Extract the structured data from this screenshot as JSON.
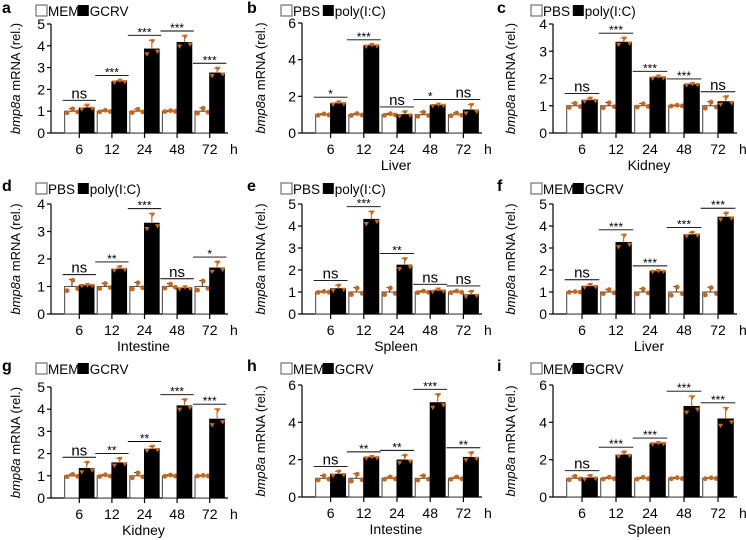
{
  "chart_data": [
    {
      "type": "bar",
      "panel": "a",
      "ylabel_italic": "bmp8a",
      "ylabel_rest": " mRNA (rel.)",
      "xlabel": "",
      "x_unit": "h",
      "categories": [
        "6",
        "12",
        "24",
        "48",
        "72"
      ],
      "ylim": [
        0,
        5
      ],
      "yticks": [
        0,
        1,
        2,
        3,
        4,
        5
      ],
      "legend": [
        "MEM",
        "GCRV"
      ],
      "series": [
        {
          "name": "MEM",
          "values": [
            1.0,
            1.0,
            1.0,
            1.0,
            1.0
          ],
          "errors": [
            0.12,
            0.05,
            0.1,
            0.03,
            0.15
          ]
        },
        {
          "name": "GCRV",
          "values": [
            1.15,
            2.35,
            3.85,
            4.15,
            2.75
          ],
          "errors": [
            0.12,
            0.06,
            0.4,
            0.3,
            0.22
          ]
        }
      ],
      "significance": [
        "ns",
        "***",
        "***",
        "***",
        "***"
      ]
    },
    {
      "type": "bar",
      "panel": "b",
      "ylabel_italic": "bmp8a",
      "ylabel_rest": " mRNA (rel.)",
      "xlabel": "Liver",
      "x_unit": "h",
      "categories": [
        "6",
        "12",
        "24",
        "48",
        "72"
      ],
      "ylim": [
        0,
        6
      ],
      "yticks": [
        0,
        2,
        4,
        6
      ],
      "legend": [
        "PBS",
        "poly(I:C)"
      ],
      "series": [
        {
          "name": "PBS",
          "values": [
            1.0,
            1.0,
            1.0,
            1.0,
            1.0
          ],
          "errors": [
            0.05,
            0.07,
            0.06,
            0.15,
            0.1
          ]
        },
        {
          "name": "poly(I:C)",
          "values": [
            1.6,
            4.75,
            1.0,
            1.5,
            1.25
          ],
          "errors": [
            0.08,
            0.06,
            0.15,
            0.05,
            0.3
          ]
        }
      ],
      "significance": [
        "*",
        "***",
        "ns",
        "*",
        "ns"
      ]
    },
    {
      "type": "bar",
      "panel": "c",
      "ylabel_italic": "bmp8a",
      "ylabel_rest": " mRNA (rel.)",
      "xlabel": "Kidney",
      "x_unit": "h",
      "categories": [
        "6",
        "12",
        "24",
        "48",
        "72"
      ],
      "ylim": [
        0,
        4
      ],
      "yticks": [
        0,
        1,
        2,
        3,
        4
      ],
      "legend": [
        "PBS",
        "poly(I:C)"
      ],
      "series": [
        {
          "name": "PBS",
          "values": [
            1.0,
            1.0,
            1.0,
            1.0,
            1.0
          ],
          "errors": [
            0.1,
            0.12,
            0.08,
            0.02,
            0.15
          ]
        },
        {
          "name": "poly(I:C)",
          "values": [
            1.2,
            3.33,
            2.03,
            1.77,
            1.15
          ],
          "errors": [
            0.07,
            0.15,
            0.05,
            0.03,
            0.18
          ]
        }
      ],
      "significance": [
        "ns",
        "***",
        "***",
        "***",
        "ns"
      ]
    },
    {
      "type": "bar",
      "panel": "d",
      "ylabel_italic": "bmp8a",
      "ylabel_rest": " mRNA (rel.)",
      "xlabel": "Intestine",
      "x_unit": "h",
      "categories": [
        "6",
        "12",
        "24",
        "48",
        "72"
      ],
      "ylim": [
        0,
        4
      ],
      "yticks": [
        0,
        1,
        2,
        3,
        4
      ],
      "legend": [
        "PBS",
        "poly(I:C)"
      ],
      "series": [
        {
          "name": "PBS",
          "values": [
            1.0,
            1.0,
            1.0,
            1.0,
            1.0
          ],
          "errors": [
            0.25,
            0.12,
            0.15,
            0.1,
            0.22
          ]
        },
        {
          "name": "poly(I:C)",
          "values": [
            1.03,
            1.63,
            3.3,
            0.93,
            1.67
          ],
          "errors": [
            0.02,
            0.08,
            0.35,
            0.05,
            0.22
          ]
        }
      ],
      "significance": [
        "ns",
        "**",
        "***",
        "ns",
        "*"
      ]
    },
    {
      "type": "bar",
      "panel": "e",
      "ylabel_italic": "bmp8a",
      "ylabel_rest": " mRNA (rel.)",
      "xlabel": "Spleen",
      "x_unit": "h",
      "categories": [
        "6",
        "12",
        "24",
        "48",
        "72"
      ],
      "ylim": [
        0,
        5
      ],
      "yticks": [
        0,
        1,
        2,
        3,
        4,
        5
      ],
      "legend": [
        "PBS",
        "poly(I:C)"
      ],
      "series": [
        {
          "name": "PBS",
          "values": [
            1.0,
            1.0,
            1.0,
            1.0,
            1.0
          ],
          "errors": [
            0.03,
            0.2,
            0.2,
            0.05,
            0.05
          ]
        },
        {
          "name": "poly(I:C)",
          "values": [
            1.15,
            4.3,
            2.22,
            1.05,
            0.87
          ],
          "errors": [
            0.15,
            0.35,
            0.3,
            0.07,
            0.15
          ]
        }
      ],
      "significance": [
        "ns",
        "***",
        "**",
        "ns",
        "ns"
      ]
    },
    {
      "type": "bar",
      "panel": "f",
      "ylabel_italic": "bmp8a",
      "ylabel_rest": " mRNA (rel.)",
      "xlabel": "Liver",
      "x_unit": "h",
      "categories": [
        "6",
        "12",
        "24",
        "48",
        "72"
      ],
      "ylim": [
        0,
        5
      ],
      "yticks": [
        0,
        1,
        2,
        3,
        4,
        5
      ],
      "legend": [
        "MEM",
        "GCRV"
      ],
      "series": [
        {
          "name": "MEM",
          "values": [
            1.0,
            1.0,
            1.0,
            1.0,
            1.0
          ],
          "errors": [
            0.02,
            0.12,
            0.15,
            0.25,
            0.22
          ]
        },
        {
          "name": "GCRV",
          "values": [
            1.25,
            3.25,
            1.93,
            3.6,
            4.4
          ],
          "errors": [
            0.08,
            0.35,
            0.03,
            0.1,
            0.18
          ]
        }
      ],
      "significance": [
        "ns",
        "***",
        "***",
        "***",
        "***"
      ]
    },
    {
      "type": "bar",
      "panel": "g",
      "ylabel_italic": "bmp8a",
      "ylabel_rest": " mRNA (rel.)",
      "xlabel": "Kidney",
      "x_unit": "h",
      "categories": [
        "6",
        "12",
        "24",
        "48",
        "72"
      ],
      "ylim": [
        0,
        5
      ],
      "yticks": [
        0,
        1,
        2,
        3,
        4,
        5
      ],
      "legend": [
        "MEM",
        "GCRV"
      ],
      "series": [
        {
          "name": "MEM",
          "values": [
            1.0,
            1.0,
            1.0,
            1.0,
            1.0
          ],
          "errors": [
            0.07,
            0.05,
            0.15,
            0.04,
            0.02
          ]
        },
        {
          "name": "GCRV",
          "values": [
            1.33,
            1.58,
            2.2,
            4.15,
            3.55
          ],
          "errors": [
            0.28,
            0.2,
            0.12,
            0.28,
            0.45
          ]
        }
      ],
      "significance": [
        "ns",
        "**",
        "**",
        "***",
        "***"
      ]
    },
    {
      "type": "bar",
      "panel": "h",
      "ylabel_italic": "bmp8a",
      "ylabel_rest": " mRNA (rel.)",
      "xlabel": "Intestine",
      "x_unit": "h",
      "categories": [
        "6",
        "12",
        "24",
        "48",
        "72"
      ],
      "ylim": [
        0,
        6
      ],
      "yticks": [
        0,
        2,
        4,
        6
      ],
      "legend": [
        "MEM",
        "GCRV"
      ],
      "series": [
        {
          "name": "MEM",
          "values": [
            1.0,
            1.0,
            1.0,
            1.0,
            1.0
          ],
          "errors": [
            0.15,
            0.25,
            0.08,
            0.15,
            0.08
          ]
        },
        {
          "name": "GCRV",
          "values": [
            1.22,
            2.1,
            1.98,
            5.05,
            2.12
          ],
          "errors": [
            0.15,
            0.05,
            0.25,
            0.45,
            0.25
          ]
        }
      ],
      "significance": [
        "ns",
        "**",
        "**",
        "***",
        "**"
      ]
    },
    {
      "type": "bar",
      "panel": "i",
      "ylabel_italic": "bmp8a",
      "ylabel_rest": " mRNA (rel.)",
      "xlabel": "Spleen",
      "x_unit": "h",
      "categories": [
        "6",
        "12",
        "24",
        "48",
        "72"
      ],
      "ylim": [
        0,
        6
      ],
      "yticks": [
        0,
        2,
        4,
        6
      ],
      "legend": [
        "MEM",
        "GCRV"
      ],
      "series": [
        {
          "name": "MEM",
          "values": [
            1.0,
            1.0,
            1.0,
            1.0,
            1.0
          ],
          "errors": [
            0.12,
            0.06,
            0.06,
            0.04,
            0.03
          ]
        },
        {
          "name": "GCRV",
          "values": [
            1.02,
            2.25,
            2.85,
            4.85,
            4.18
          ],
          "errors": [
            0.12,
            0.15,
            0.04,
            0.55,
            0.6
          ]
        }
      ],
      "significance": [
        "ns",
        "***",
        "***",
        "***",
        "***"
      ]
    }
  ],
  "colors": {
    "control_fill": "#ffffff",
    "treatment_fill": "#000000",
    "data_point": "#c8661a",
    "axis": "#000000"
  }
}
